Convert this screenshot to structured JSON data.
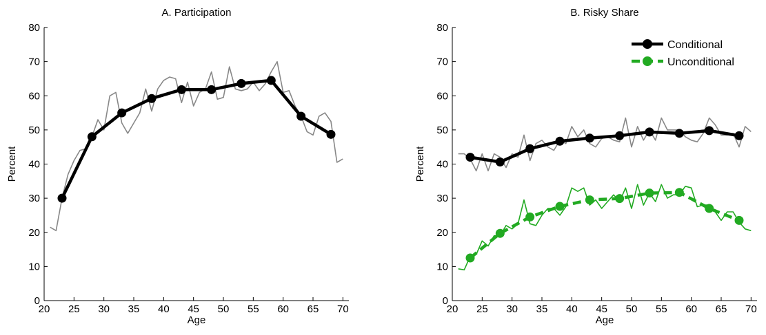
{
  "chart_data": [
    {
      "type": "line",
      "title": "A. Participation",
      "xlabel": "Age",
      "ylabel": "Percent",
      "xlim": [
        20,
        71
      ],
      "ylim": [
        0,
        80
      ],
      "xticks": [
        "20",
        "25",
        "30",
        "35",
        "40",
        "45",
        "50",
        "55",
        "60",
        "65",
        "70"
      ],
      "yticks": [
        "0",
        "10",
        "20",
        "30",
        "40",
        "50",
        "60",
        "70",
        "80"
      ],
      "grid": false,
      "legend": "none",
      "series": [
        {
          "style": "thin-line",
          "color": "#888888",
          "x": [
            21,
            22,
            23,
            24,
            25,
            26,
            27,
            28,
            29,
            30,
            31,
            32,
            33,
            34,
            35,
            36,
            37,
            38,
            39,
            40,
            41,
            42,
            43,
            44,
            45,
            46,
            47,
            48,
            49,
            50,
            51,
            52,
            53,
            54,
            55,
            56,
            57,
            58,
            59,
            60,
            61,
            62,
            63,
            64,
            65,
            66,
            67,
            68,
            69,
            70
          ],
          "y": [
            21.5,
            20.5,
            30,
            37,
            41,
            44,
            44.5,
            48,
            53,
            50,
            60,
            61,
            52,
            49,
            52,
            55,
            62,
            55.5,
            62,
            64.5,
            65.5,
            65,
            58,
            64,
            57,
            61,
            62,
            67,
            59,
            59.5,
            68.5,
            62,
            61.5,
            62,
            64,
            61.5,
            63.5,
            67,
            70,
            61,
            61.5,
            57,
            54,
            49.5,
            48.5,
            54,
            55,
            52.5,
            40.5,
            41.5
          ]
        },
        {
          "style": "thick-line-markers",
          "color": "#000000",
          "x": [
            23,
            28,
            33,
            38,
            43,
            48,
            53,
            58,
            63,
            68
          ],
          "y": [
            30,
            48,
            55,
            59.2,
            61.8,
            61.8,
            63.6,
            64.5,
            54,
            48.7
          ]
        }
      ]
    },
    {
      "type": "line",
      "title": "B. Risky Share",
      "xlabel": "Age",
      "ylabel": "Percent",
      "xlim": [
        20,
        71
      ],
      "ylim": [
        0,
        80
      ],
      "xticks": [
        "20",
        "25",
        "30",
        "35",
        "40",
        "45",
        "50",
        "55",
        "60",
        "65",
        "70"
      ],
      "yticks": [
        "0",
        "10",
        "20",
        "30",
        "40",
        "50",
        "60",
        "70",
        "80"
      ],
      "grid": false,
      "legend": "top-right",
      "series": [
        {
          "style": "thin-line",
          "color": "#888888",
          "x": [
            21,
            22,
            23,
            24,
            25,
            26,
            27,
            28,
            29,
            30,
            31,
            32,
            33,
            34,
            35,
            36,
            37,
            38,
            39,
            40,
            41,
            42,
            43,
            44,
            45,
            46,
            47,
            48,
            49,
            50,
            51,
            52,
            53,
            54,
            55,
            56,
            57,
            58,
            59,
            60,
            61,
            62,
            63,
            64,
            65,
            66,
            67,
            68,
            69,
            70
          ],
          "y": [
            43,
            43,
            41.5,
            38,
            43,
            38,
            43,
            42,
            39,
            43,
            42,
            48.5,
            41,
            46,
            47,
            45,
            44,
            47,
            46,
            51,
            48,
            50,
            46,
            45,
            47.5,
            48,
            47,
            46.5,
            53.5,
            45,
            51,
            47,
            50,
            47,
            53.5,
            50,
            50,
            50,
            48,
            47,
            46.5,
            49,
            53.5,
            51.5,
            48.5,
            48.5,
            49,
            45,
            51,
            49.5
          ]
        },
        {
          "name": "Conditional",
          "style": "thick-line-markers",
          "color": "#000000",
          "x": [
            23,
            28,
            33,
            38,
            43,
            48,
            53,
            58,
            63,
            68
          ],
          "y": [
            42,
            40.6,
            44.5,
            46.7,
            47.6,
            48.3,
            49.4,
            49,
            49.8,
            48.3
          ]
        },
        {
          "style": "thin-line",
          "color": "#22aa22",
          "x": [
            21,
            22,
            23,
            24,
            25,
            26,
            27,
            28,
            29,
            30,
            31,
            32,
            33,
            34,
            35,
            36,
            37,
            38,
            39,
            40,
            41,
            42,
            43,
            44,
            45,
            46,
            47,
            48,
            49,
            50,
            51,
            52,
            53,
            54,
            55,
            56,
            57,
            58,
            59,
            60,
            61,
            62,
            63,
            64,
            65,
            66,
            67,
            68,
            69,
            70
          ],
          "y": [
            9.3,
            9,
            13,
            13.5,
            17.5,
            16,
            19,
            19,
            22,
            21,
            22.5,
            29.5,
            22.5,
            22,
            25,
            27,
            27,
            25,
            27.5,
            33,
            32,
            33,
            28,
            29.5,
            27,
            29,
            31,
            29,
            33,
            27,
            34,
            28,
            31.5,
            29,
            34,
            30,
            31,
            31,
            33.5,
            33,
            27.5,
            28,
            28,
            26,
            23.5,
            26,
            26,
            23,
            21,
            20.5
          ]
        },
        {
          "name": "Unconditional",
          "style": "dashed-line-markers",
          "color": "#22aa22",
          "x": [
            23,
            28,
            33,
            38,
            43,
            48,
            53,
            58,
            63,
            68
          ],
          "y": [
            12.5,
            19.7,
            24.5,
            27.6,
            29.5,
            29.9,
            31.5,
            31.7,
            27,
            23.5
          ]
        }
      ]
    }
  ]
}
